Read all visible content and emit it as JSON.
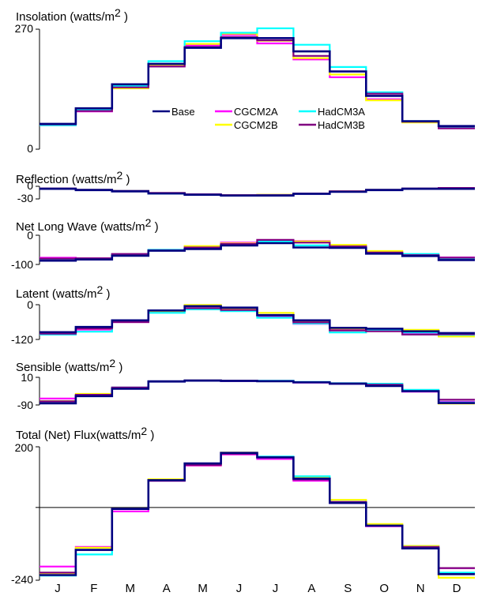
{
  "months": [
    "J",
    "F",
    "M",
    "A",
    "M",
    "J",
    "J",
    "A",
    "S",
    "O",
    "N",
    "D"
  ],
  "colors": {
    "Base": "#000080",
    "CGCM2A": "#ff00ff",
    "CGCM2B": "#ffff00",
    "HadCM3A": "#00ffff",
    "HadCM3B": "#800080"
  },
  "chart_data": [
    {
      "type": "line",
      "title": "Insolation (watts/m2 )",
      "ylim": [
        0,
        270
      ],
      "yticks": [
        "270",
        "0"
      ],
      "x": [
        "J",
        "F",
        "M",
        "A",
        "M",
        "J",
        "J",
        "A",
        "S",
        "O",
        "N",
        "D"
      ],
      "legend": {
        "placement": "center",
        "entries": [
          "Base",
          "CGCM2A",
          "CGCM2B",
          "HadCM3A",
          "HadCM3B"
        ]
      },
      "series": [
        {
          "name": "Base",
          "values": [
            57,
            92,
            146,
            192,
            228,
            250,
            250,
            220,
            175,
            120,
            63,
            52
          ]
        },
        {
          "name": "CGCM2A",
          "values": [
            55,
            85,
            140,
            188,
            234,
            257,
            238,
            202,
            162,
            112,
            62,
            47
          ]
        },
        {
          "name": "CGCM2B",
          "values": [
            55,
            87,
            137,
            190,
            237,
            260,
            244,
            205,
            168,
            110,
            60,
            49
          ]
        },
        {
          "name": "HadCM3A",
          "values": [
            54,
            88,
            142,
            198,
            243,
            262,
            272,
            235,
            185,
            128,
            63,
            48
          ]
        },
        {
          "name": "HadCM3B",
          "values": [
            56,
            86,
            139,
            186,
            230,
            252,
            245,
            210,
            175,
            125,
            62,
            47
          ]
        }
      ]
    },
    {
      "type": "line",
      "title": "Reflection (watts/m2 )",
      "ylim": [
        -30,
        0
      ],
      "yticks": [
        "0",
        "-30"
      ],
      "x": [
        "J",
        "F",
        "M",
        "A",
        "M",
        "J",
        "J",
        "A",
        "S",
        "O",
        "N",
        "D"
      ],
      "series": [
        {
          "name": "Base",
          "values": [
            -6,
            -9,
            -12,
            -17,
            -20,
            -22,
            -22,
            -18,
            -13,
            -9,
            -6,
            -6
          ]
        },
        {
          "name": "CGCM2A",
          "values": [
            -5,
            -8,
            -11,
            -16,
            -19,
            -21,
            -20,
            -17,
            -12,
            -8,
            -5,
            -4
          ]
        },
        {
          "name": "CGCM2B",
          "values": [
            -5,
            -8,
            -11,
            -16,
            -19,
            -21,
            -20,
            -17,
            -12,
            -8,
            -5,
            -4
          ]
        },
        {
          "name": "HadCM3A",
          "values": [
            -5,
            -8,
            -11,
            -17,
            -20,
            -22,
            -21,
            -17,
            -13,
            -8,
            -5,
            -4
          ]
        },
        {
          "name": "HadCM3B",
          "values": [
            -5,
            -8,
            -11,
            -16,
            -19,
            -21,
            -21,
            -17,
            -12,
            -8,
            -5,
            -4
          ]
        }
      ]
    },
    {
      "type": "line",
      "title": "Net Long Wave (watts/m2 )",
      "ylim": [
        -100,
        0
      ],
      "yticks": [
        "0",
        "-100"
      ],
      "x": [
        "J",
        "F",
        "M",
        "A",
        "M",
        "J",
        "J",
        "A",
        "S",
        "O",
        "N",
        "D"
      ],
      "series": [
        {
          "name": "Base",
          "values": [
            -87,
            -83,
            -70,
            -53,
            -47,
            -35,
            -27,
            -42,
            -43,
            -63,
            -71,
            -85
          ]
        },
        {
          "name": "CGCM2A",
          "values": [
            -77,
            -79,
            -65,
            -50,
            -38,
            -25,
            -17,
            -20,
            -35,
            -58,
            -69,
            -76
          ]
        },
        {
          "name": "CGCM2B",
          "values": [
            -84,
            -80,
            -68,
            -51,
            -37,
            -28,
            -18,
            -21,
            -33,
            -54,
            -69,
            -85
          ]
        },
        {
          "name": "HadCM3A",
          "values": [
            -85,
            -81,
            -67,
            -50,
            -45,
            -30,
            -22,
            -35,
            -41,
            -60,
            -64,
            -82
          ]
        },
        {
          "name": "HadCM3B",
          "values": [
            -80,
            -79,
            -64,
            -52,
            -42,
            -30,
            -16,
            -25,
            -38,
            -59,
            -68,
            -77
          ]
        }
      ]
    },
    {
      "type": "line",
      "title": "Latent (watts/m2 )",
      "ylim": [
        -120,
        0
      ],
      "yticks": [
        "0",
        "-120"
      ],
      "x": [
        "J",
        "F",
        "M",
        "A",
        "M",
        "J",
        "J",
        "A",
        "S",
        "O",
        "N",
        "D"
      ],
      "series": [
        {
          "name": "Base",
          "values": [
            -95,
            -77,
            -54,
            -20,
            -5,
            -10,
            -36,
            -54,
            -80,
            -83,
            -92,
            -98
          ]
        },
        {
          "name": "CGCM2A",
          "values": [
            -103,
            -86,
            -60,
            -24,
            -16,
            -14,
            -40,
            -66,
            -87,
            -89,
            -101,
            -103
          ]
        },
        {
          "name": "CGCM2B",
          "values": [
            -100,
            -82,
            -57,
            -22,
            -1,
            -13,
            -28,
            -58,
            -82,
            -85,
            -87,
            -110
          ]
        },
        {
          "name": "HadCM3A",
          "values": [
            -103,
            -93,
            -58,
            -28,
            -16,
            -22,
            -45,
            -65,
            -96,
            -87,
            -96,
            -104
          ]
        },
        {
          "name": "HadCM3B",
          "values": [
            -100,
            -82,
            -60,
            -20,
            -12,
            -18,
            -37,
            -61,
            -89,
            -92,
            -103,
            -102
          ]
        }
      ]
    },
    {
      "type": "line",
      "title": "Sensible (watts/m2 )",
      "ylim": [
        -90,
        10
      ],
      "yticks": [
        "10",
        "-90"
      ],
      "x": [
        "J",
        "F",
        "M",
        "A",
        "M",
        "J",
        "J",
        "A",
        "S",
        "O",
        "N",
        "D"
      ],
      "series": [
        {
          "name": "Base",
          "values": [
            -84,
            -58,
            -31,
            -5,
            -2,
            -3,
            -4,
            -8,
            -13,
            -21,
            -40,
            -83
          ]
        },
        {
          "name": "CGCM2A",
          "values": [
            -67,
            -56,
            -29,
            -5,
            -1,
            -3,
            -4,
            -9,
            -13,
            -16,
            -42,
            -79
          ]
        },
        {
          "name": "CGCM2B",
          "values": [
            -76,
            -50,
            -28,
            -5,
            -1,
            -2,
            -3,
            -8,
            -12,
            -13,
            -38,
            -85
          ]
        },
        {
          "name": "HadCM3A",
          "values": [
            -78,
            -56,
            -27,
            -4,
            -1,
            -2,
            -2,
            -7,
            -11,
            -13,
            -35,
            -81
          ]
        },
        {
          "name": "HadCM3B",
          "values": [
            -77,
            -53,
            -27,
            -4,
            -1,
            -2,
            -3,
            -8,
            -12,
            -17,
            -40,
            -71
          ]
        }
      ]
    },
    {
      "type": "line",
      "title": "Total (Net) Flux(watts/m2 )",
      "ylim": [
        -240,
        200
      ],
      "yticks": [
        "200",
        "-240"
      ],
      "x": [
        "J",
        "F",
        "M",
        "A",
        "M",
        "J",
        "J",
        "A",
        "S",
        "O",
        "N",
        "D"
      ],
      "series": [
        {
          "name": "Base",
          "values": [
            -223,
            -140,
            -5,
            90,
            145,
            180,
            165,
            95,
            15,
            -60,
            -135,
            -220
          ]
        },
        {
          "name": "CGCM2A",
          "values": [
            -195,
            -130,
            -13,
            88,
            138,
            175,
            160,
            88,
            15,
            -62,
            -128,
            -200
          ]
        },
        {
          "name": "CGCM2B",
          "values": [
            -217,
            -133,
            -5,
            93,
            140,
            181,
            166,
            100,
            25,
            -55,
            -127,
            -232
          ]
        },
        {
          "name": "HadCM3A",
          "values": [
            -225,
            -155,
            -5,
            90,
            145,
            178,
            168,
            103,
            18,
            -60,
            -130,
            -215
          ]
        },
        {
          "name": "HadCM3B",
          "values": [
            -215,
            -140,
            -5,
            88,
            140,
            177,
            165,
            92,
            18,
            -60,
            -130,
            -200
          ]
        }
      ]
    }
  ]
}
